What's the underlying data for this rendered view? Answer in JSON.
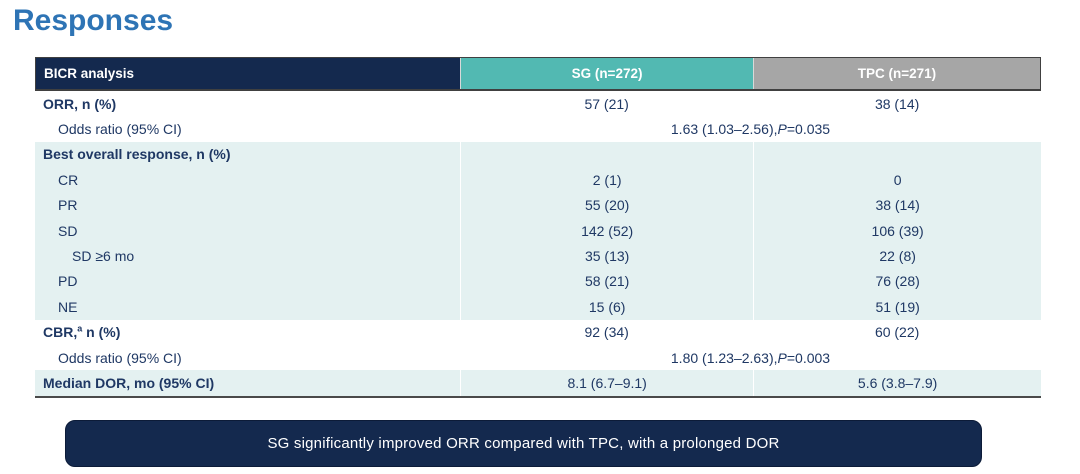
{
  "title": "Responses",
  "colors": {
    "title_blue": "#2E74B5",
    "header_navy": "#14294E",
    "header_teal": "#52B9B2",
    "header_gray": "#A6A6A6",
    "row_tint": "#E4F1F1",
    "text_navy": "#1F3864",
    "banner_navy": "#14294E"
  },
  "table": {
    "header": {
      "col_label": "BICR analysis",
      "col_sg": "SG (n=272)",
      "col_tpc": "TPC (n=271)"
    },
    "rows": [
      {
        "label": "ORR, n (%)",
        "sg": "57 (21)",
        "tpc": "38 (14)"
      },
      {
        "label": "Odds ratio (95% CI)",
        "value_pre": "1.63 (1.03–2.56), ",
        "value_p": "P",
        "value_post": "=0.035"
      },
      {
        "label": "Best overall response, n (%)",
        "sg": "",
        "tpc": ""
      },
      {
        "label": "CR",
        "sg": "2 (1)",
        "tpc": "0"
      },
      {
        "label": "PR",
        "sg": "55 (20)",
        "tpc": "38 (14)"
      },
      {
        "label": "SD",
        "sg": "142 (52)",
        "tpc": "106 (39)"
      },
      {
        "label": "SD ≥6 mo",
        "sg": "35 (13)",
        "tpc": "22 (8)"
      },
      {
        "label": "PD",
        "sg": "58 (21)",
        "tpc": "76 (28)"
      },
      {
        "label": "NE",
        "sg": "15 (6)",
        "tpc": "51 (19)"
      },
      {
        "label_pre": "CBR,",
        "label_sup": "a",
        "label_post": " n (%)",
        "sg": "92 (34)",
        "tpc": "60 (22)"
      },
      {
        "label": "Odds ratio (95% CI)",
        "value_pre": "1.80 (1.23–2.63), ",
        "value_p": "P",
        "value_post": "=0.003"
      },
      {
        "label": "Median DOR, mo (95% CI)",
        "sg": "8.1 (6.7–9.1)",
        "tpc": "5.6 (3.8–7.9)"
      }
    ]
  },
  "banner": {
    "text": "SG significantly improved ORR compared with TPC, with a prolonged DOR"
  }
}
